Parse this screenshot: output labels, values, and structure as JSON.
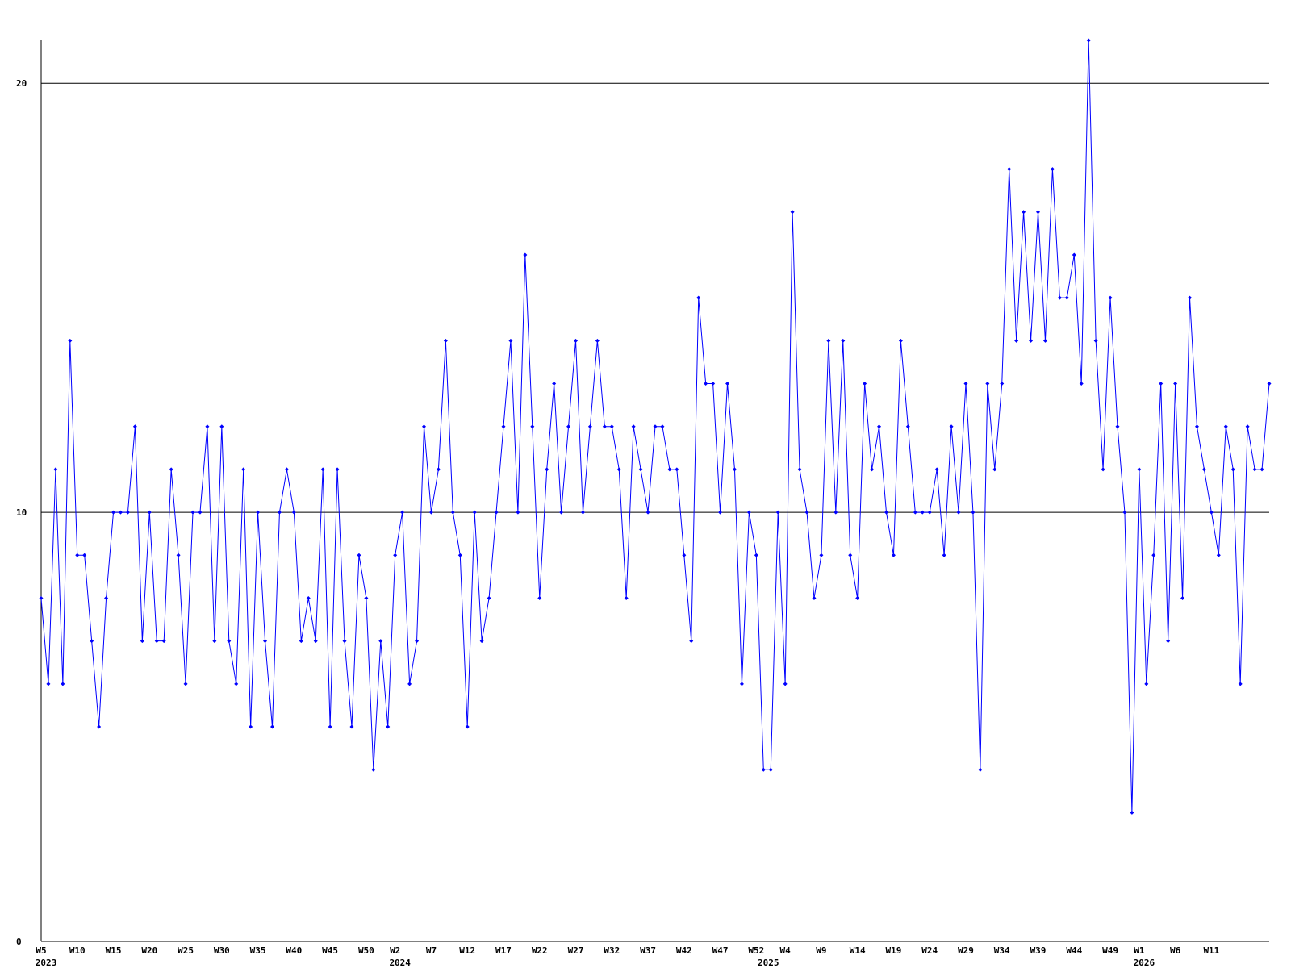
{
  "chart_data": {
    "type": "line",
    "color": "#0000ff",
    "grid": true,
    "ylim": [
      0,
      21
    ],
    "yticks": [
      0,
      10,
      20
    ],
    "categories": [
      "W5",
      null,
      null,
      null,
      null,
      "W10",
      null,
      null,
      null,
      null,
      "W15",
      null,
      null,
      null,
      null,
      "W20",
      null,
      null,
      null,
      null,
      "W25",
      null,
      null,
      null,
      null,
      "W30",
      null,
      null,
      null,
      null,
      "W35",
      null,
      null,
      null,
      null,
      "W40",
      null,
      null,
      null,
      null,
      "W45",
      null,
      null,
      null,
      null,
      "W50",
      null,
      null,
      null,
      "W2",
      null,
      null,
      null,
      null,
      "W7",
      null,
      null,
      null,
      null,
      "W12",
      null,
      null,
      null,
      null,
      "W17",
      null,
      null,
      null,
      null,
      "W22",
      null,
      null,
      null,
      null,
      "W27",
      null,
      null,
      null,
      null,
      "W32",
      null,
      null,
      null,
      null,
      "W37",
      null,
      null,
      null,
      null,
      "W42",
      null,
      null,
      null,
      null,
      "W47",
      null,
      null,
      null,
      null,
      "W52",
      null,
      null,
      null,
      "W4",
      null,
      null,
      null,
      null,
      "W9",
      null,
      null,
      null,
      null,
      "W14",
      null,
      null,
      null,
      null,
      "W19",
      null,
      null,
      null,
      null,
      "W24",
      null,
      null,
      null,
      null,
      "W29",
      null,
      null,
      null,
      null,
      "W34",
      null,
      null,
      null,
      null,
      "W39",
      null,
      null,
      null,
      null,
      "W44",
      null,
      null,
      null,
      null,
      "W49",
      null,
      null,
      null,
      "W1",
      null,
      null,
      null,
      null,
      "W6",
      null,
      null,
      null,
      null,
      "W11",
      null,
      null,
      null,
      null,
      null,
      null,
      null,
      null
    ],
    "years": [
      "2023",
      null,
      null,
      null,
      null,
      null,
      null,
      null,
      null,
      null,
      null,
      null,
      null,
      null,
      null,
      null,
      null,
      null,
      null,
      null,
      null,
      null,
      null,
      null,
      null,
      null,
      null,
      null,
      null,
      null,
      null,
      null,
      null,
      null,
      null,
      null,
      null,
      null,
      null,
      null,
      null,
      null,
      null,
      null,
      null,
      null,
      null,
      null,
      null,
      "2024",
      null,
      null,
      null,
      null,
      null,
      null,
      null,
      null,
      null,
      null,
      null,
      null,
      null,
      null,
      null,
      null,
      null,
      null,
      null,
      null,
      null,
      null,
      null,
      null,
      null,
      null,
      null,
      null,
      null,
      null,
      null,
      null,
      null,
      null,
      null,
      null,
      null,
      null,
      null,
      null,
      null,
      null,
      null,
      null,
      null,
      null,
      null,
      null,
      null,
      null,
      "2025",
      null,
      null,
      null,
      null,
      null,
      null,
      null,
      null,
      null,
      null,
      null,
      null,
      null,
      null,
      null,
      null,
      null,
      null,
      null,
      null,
      null,
      null,
      null,
      null,
      null,
      null,
      null,
      null,
      null,
      null,
      null,
      null,
      null,
      null,
      null,
      null,
      null,
      null,
      null,
      null,
      null,
      null,
      null,
      null,
      null,
      null,
      null,
      null,
      null,
      null,
      null,
      "2026",
      null,
      null,
      null,
      null,
      null,
      null,
      null,
      null,
      null,
      null,
      null,
      null,
      null,
      null,
      null,
      null,
      null,
      null
    ],
    "values": [
      8,
      6,
      11,
      6,
      14,
      9,
      9,
      7,
      5,
      8,
      10,
      10,
      10,
      12,
      7,
      10,
      7,
      7,
      11,
      9,
      6,
      10,
      10,
      12,
      7,
      12,
      7,
      6,
      11,
      5,
      10,
      7,
      5,
      10,
      11,
      10,
      7,
      8,
      7,
      11,
      5,
      11,
      7,
      5,
      9,
      8,
      4,
      7,
      5,
      9,
      10,
      6,
      7,
      12,
      10,
      11,
      14,
      10,
      9,
      5,
      10,
      7,
      8,
      10,
      12,
      14,
      10,
      16,
      12,
      8,
      11,
      13,
      10,
      12,
      14,
      10,
      12,
      14,
      12,
      12,
      11,
      8,
      12,
      11,
      10,
      12,
      12,
      11,
      11,
      9,
      7,
      15,
      13,
      13,
      10,
      13,
      11,
      6,
      10,
      9,
      4,
      4,
      10,
      6,
      17,
      11,
      10,
      8,
      9,
      14,
      10,
      14,
      9,
      8,
      13,
      11,
      12,
      10,
      9,
      14,
      12,
      10,
      10,
      10,
      11,
      9,
      12,
      10,
      13,
      10,
      4,
      13,
      11,
      13,
      18,
      14,
      17,
      14,
      17,
      14,
      18,
      15,
      15,
      16,
      13,
      21,
      14,
      11,
      15,
      12,
      10,
      3,
      11,
      6,
      9,
      13,
      7,
      13,
      8,
      15,
      12,
      11,
      10,
      9,
      12,
      11,
      6,
      12,
      11,
      11,
      13
    ]
  }
}
